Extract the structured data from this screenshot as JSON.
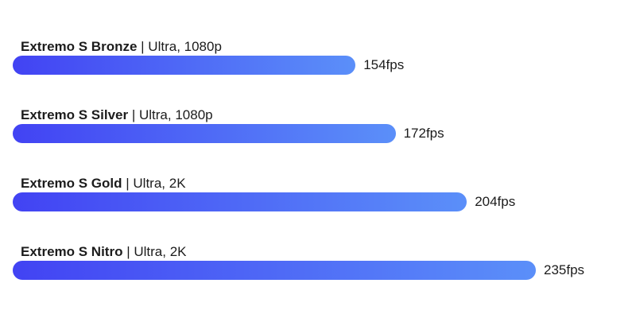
{
  "colors": {
    "bar_start": "#4243f3",
    "bar_end": "#5b8ff9",
    "text": "#1c1c1c"
  },
  "chart_data": {
    "type": "bar",
    "orientation": "horizontal",
    "categories": [
      "Extremo S Bronze",
      "Extremo S Silver",
      "Extremo S Gold",
      "Extremo S Nitro"
    ],
    "details": [
      "| Ultra, 1080p",
      "| Ultra, 1080p",
      "| Ultra, 2K",
      "| Ultra, 2K"
    ],
    "values": [
      154,
      172,
      204,
      235
    ],
    "value_labels": [
      "154fps",
      "172fps",
      "204fps",
      "235fps"
    ],
    "title": "",
    "xlabel": "",
    "ylabel": "",
    "grid": false,
    "legend": "none"
  }
}
